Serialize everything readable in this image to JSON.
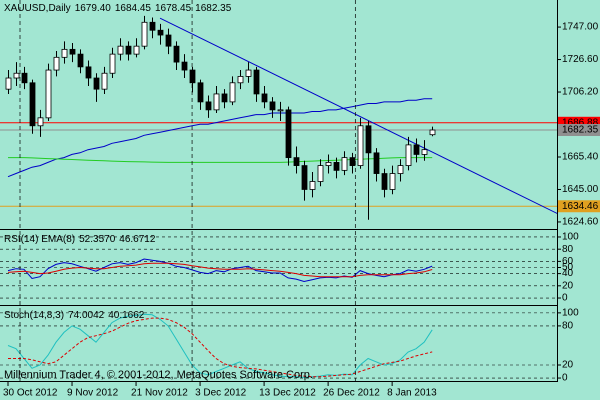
{
  "chart_data": [
    {
      "type": "candlestick",
      "title": "XAUUSD,Daily",
      "title_value_labels": [
        "1679.40",
        "1684.45",
        "1678.45",
        "1682.35"
      ],
      "xlim": [
        -1,
        68.6
      ],
      "ylim": [
        1620.8,
        1764
      ],
      "yticks": [
        {
          "value": 1747,
          "label": "1747.00"
        },
        {
          "value": 1726.6,
          "label": "1726.60"
        },
        {
          "value": 1706.2,
          "label": "1706.20"
        },
        {
          "value": 1665.4,
          "label": "1665.40"
        },
        {
          "value": 1645,
          "label": "1645.00"
        },
        {
          "value": 1624.6,
          "label": "1624.60"
        }
      ],
      "colors": {
        "up": "#ffffff",
        "down": "#000000"
      },
      "ohlc": [
        [
          1708,
          1720,
          1705,
          1715
        ],
        [
          1715,
          1725,
          1710,
          1718
        ],
        [
          1718,
          1722,
          1708,
          1712
        ],
        [
          1712,
          1714,
          1680,
          1685
        ],
        [
          1685,
          1695,
          1678,
          1690
        ],
        [
          1690,
          1724,
          1688,
          1720
        ],
        [
          1720,
          1732,
          1716,
          1728
        ],
        [
          1728,
          1738,
          1724,
          1733
        ],
        [
          1733,
          1737,
          1725,
          1730
        ],
        [
          1730,
          1733,
          1718,
          1722
        ],
        [
          1722,
          1726,
          1710,
          1715
        ],
        [
          1715,
          1718,
          1700,
          1708
        ],
        [
          1708,
          1722,
          1705,
          1718
        ],
        [
          1718,
          1734,
          1715,
          1730
        ],
        [
          1730,
          1740,
          1726,
          1735
        ],
        [
          1735,
          1738,
          1726,
          1730
        ],
        [
          1730,
          1740,
          1728,
          1735
        ],
        [
          1735,
          1754,
          1733,
          1750
        ],
        [
          1750,
          1753,
          1740,
          1745
        ],
        [
          1745,
          1749,
          1736,
          1742
        ],
        [
          1742,
          1746,
          1730,
          1735
        ],
        [
          1735,
          1738,
          1720,
          1725
        ],
        [
          1725,
          1730,
          1715,
          1720
        ],
        [
          1720,
          1722,
          1706,
          1712
        ],
        [
          1712,
          1714,
          1695,
          1700
        ],
        [
          1700,
          1704,
          1690,
          1695
        ],
        [
          1695,
          1710,
          1693,
          1705
        ],
        [
          1705,
          1708,
          1696,
          1700
        ],
        [
          1700,
          1716,
          1698,
          1712
        ],
        [
          1712,
          1720,
          1708,
          1716
        ],
        [
          1716,
          1725,
          1712,
          1720
        ],
        [
          1720,
          1722,
          1700,
          1705
        ],
        [
          1705,
          1710,
          1696,
          1700
        ],
        [
          1700,
          1703,
          1690,
          1695
        ],
        [
          1695,
          1700,
          1688,
          1695
        ],
        [
          1695,
          1697,
          1660,
          1665
        ],
        [
          1665,
          1672,
          1655,
          1660
        ],
        [
          1660,
          1663,
          1638,
          1645
        ],
        [
          1645,
          1656,
          1640,
          1650
        ],
        [
          1650,
          1664,
          1647,
          1660
        ],
        [
          1660,
          1667,
          1655,
          1662
        ],
        [
          1662,
          1665,
          1652,
          1657
        ],
        [
          1657,
          1669,
          1654,
          1665
        ],
        [
          1665,
          1668,
          1655,
          1660
        ],
        [
          1660,
          1690,
          1658,
          1685
        ],
        [
          1685,
          1688,
          1626,
          1668
        ],
        [
          1668,
          1671,
          1650,
          1655
        ],
        [
          1655,
          1658,
          1640,
          1645
        ],
        [
          1645,
          1660,
          1642,
          1655
        ],
        [
          1655,
          1664,
          1650,
          1660
        ],
        [
          1660,
          1678,
          1657,
          1673
        ],
        [
          1673,
          1677,
          1662,
          1667
        ],
        [
          1667,
          1676,
          1663,
          1670
        ],
        [
          1679.4,
          1684.45,
          1678.45,
          1682.35
        ]
      ],
      "series": [
        {
          "color": "#0000c8",
          "values": [
            1653,
            1655,
            1657,
            1659,
            1660,
            1662,
            1664,
            1665,
            1667,
            1668,
            1670,
            1671,
            1672,
            1674,
            1675,
            1676,
            1677,
            1679,
            1680,
            1681,
            1682,
            1683,
            1684,
            1685,
            1686,
            1686,
            1687,
            1688,
            1689,
            1690,
            1691,
            1692,
            1692,
            1693,
            1693,
            1693,
            1693,
            1693,
            1694,
            1694,
            1695,
            1695,
            1696,
            1697,
            1698,
            1699,
            1699,
            1700,
            1700,
            1700,
            1701,
            1701,
            1702,
            1702
          ]
        },
        {
          "color": "#22cc22",
          "values": [
            1665,
            1665,
            1665,
            1664.8,
            1664.6,
            1664.4,
            1664.2,
            1664,
            1663.8,
            1663.6,
            1663.4,
            1663.2,
            1663,
            1662.8,
            1662.6,
            1662.5,
            1662.4,
            1662.3,
            1662.2,
            1662.1,
            1662,
            1662,
            1662,
            1662,
            1662,
            1662,
            1662,
            1662,
            1662,
            1662,
            1662,
            1662,
            1662,
            1662,
            1662,
            1662.2,
            1662.4,
            1662.6,
            1662.8,
            1663,
            1663.2,
            1663.4,
            1663.6,
            1663.8,
            1664,
            1664.2,
            1664.4,
            1664.6,
            1664.8,
            1665,
            1665,
            1665,
            1665,
            1665
          ]
        }
      ],
      "trendline": {
        "x": [
          19,
          69
        ],
        "values": [
          1752.6,
          1629
        ],
        "color": "#0000c8"
      },
      "hlines": [
        {
          "value": 1686.88,
          "label": "1686.88",
          "color": "#ff0000"
        },
        {
          "value": 1682.35,
          "label": "1682.35",
          "color": "#909090"
        },
        {
          "value": 1634.46,
          "label": "1634.46",
          "color": "#e0a020"
        }
      ],
      "vlines": [
        1.5,
        23,
        43.4
      ]
    },
    {
      "type": "line",
      "title": "RSI(14) EMA(8)",
      "xlim": [
        -1,
        68.6
      ],
      "ylim": [
        -9.8,
        109.8
      ],
      "yticks": [
        100,
        80,
        60,
        50,
        40,
        20,
        0
      ],
      "grid": true,
      "series": [
        {
          "color": "#0000c8",
          "dash": false,
          "last_value_label": "52.3570",
          "values": [
            45,
            48,
            47,
            32,
            35,
            48,
            55,
            58,
            56,
            52,
            48,
            44,
            50,
            56,
            58,
            55,
            58,
            64,
            62,
            60,
            57,
            52,
            50,
            46,
            42,
            40,
            45,
            43,
            48,
            50,
            52,
            45,
            43,
            41,
            41,
            33,
            31,
            27,
            30,
            33,
            34,
            33,
            36,
            34,
            45,
            40,
            37,
            35,
            38,
            40,
            46,
            44,
            47,
            52.357
          ]
        },
        {
          "color": "#dd0000",
          "dash": false,
          "last_value_label": "46.6712",
          "values": [
            42,
            43,
            44,
            42,
            40,
            41,
            44,
            47,
            49,
            50,
            49,
            48,
            48,
            50,
            52,
            53,
            54,
            56,
            57,
            57,
            57,
            56,
            55,
            53,
            51,
            49,
            48,
            47,
            47,
            47,
            48,
            47,
            46,
            45,
            44,
            42,
            40,
            37,
            36,
            35,
            35,
            35,
            35,
            35,
            37,
            38,
            38,
            38,
            38,
            38,
            40,
            41,
            43,
            46.6712
          ]
        }
      ]
    },
    {
      "type": "line",
      "title": "Stoch(14,8,3)",
      "xlim": [
        -1,
        68.6
      ],
      "ylim": [
        -3,
        109
      ],
      "yticks": [
        100,
        80,
        20,
        0
      ],
      "grid": true,
      "watermark": "Millennium Trader 4, © 2001-2012, MetaQuotes Software Corp.",
      "xticks": [
        {
          "value": 0,
          "label": "30 Oct 2012"
        },
        {
          "value": 8,
          "label": "9 Nov 2012"
        },
        {
          "value": 16,
          "label": "21 Nov 2012"
        },
        {
          "value": 24,
          "label": "3 Dec 2012"
        },
        {
          "value": 32,
          "label": "13 Dec 2012"
        },
        {
          "value": 40,
          "label": "26 Dec 2012"
        },
        {
          "value": 48,
          "label": "8 Jan 2013"
        }
      ],
      "series": [
        {
          "color": "#20c0c0",
          "dash": false,
          "last_value_label": "74.0042",
          "values": [
            50,
            45,
            30,
            15,
            20,
            35,
            55,
            70,
            80,
            75,
            65,
            55,
            70,
            85,
            92,
            95,
            96,
            98,
            97,
            90,
            80,
            60,
            40,
            20,
            8,
            5,
            10,
            15,
            20,
            25,
            15,
            10,
            8,
            5,
            3,
            2,
            2,
            1,
            2,
            3,
            5,
            4,
            6,
            5,
            20,
            30,
            25,
            20,
            22,
            28,
            40,
            45,
            55,
            74.0042
          ]
        },
        {
          "color": "#dd0000",
          "dash": true,
          "last_value_label": "40.1662",
          "values": [
            30,
            30,
            30,
            28,
            25,
            22,
            25,
            35,
            45,
            55,
            62,
            65,
            68,
            72,
            78,
            84,
            88,
            90,
            92,
            92,
            90,
            85,
            78,
            68,
            55,
            42,
            30,
            22,
            18,
            16,
            15,
            14,
            12,
            10,
            8,
            6,
            4,
            3,
            2,
            2,
            3,
            4,
            5,
            6,
            10,
            14,
            18,
            22,
            24,
            26,
            30,
            34,
            37,
            40.1662
          ]
        }
      ]
    }
  ]
}
